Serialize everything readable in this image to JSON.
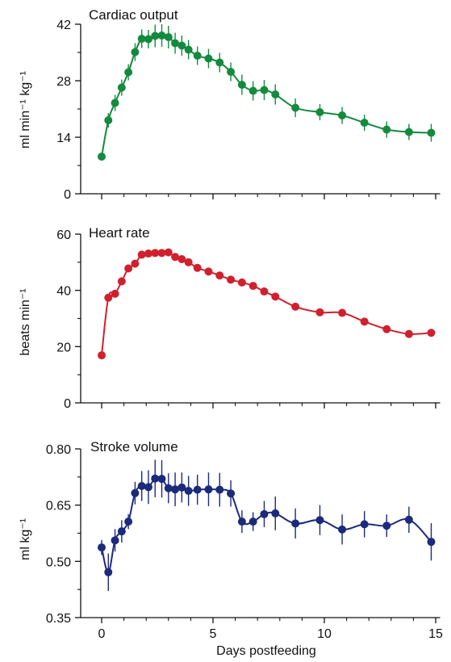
{
  "chart_data": [
    {
      "type": "line",
      "title": "Cardiac output",
      "ylabel": "ml min⁻¹ kg⁻¹",
      "xlabel": "",
      "ylim": [
        0,
        42
      ],
      "yticks": [
        "0",
        "14",
        "28",
        "42"
      ],
      "color": "#138a3e",
      "series": [
        {
          "x": [
            0,
            0.3,
            0.6,
            0.9,
            1.2,
            1.5,
            1.8,
            2.1,
            2.4,
            2.7,
            3.0,
            3.3,
            3.6,
            3.9,
            4.3,
            4.8,
            5.3,
            5.8,
            6.3,
            6.8,
            7.3,
            7.8,
            8.7,
            9.8,
            10.8,
            11.8,
            12.8,
            13.8,
            14.8
          ],
          "y": [
            9.2,
            18.2,
            22.5,
            26.3,
            30.1,
            35.1,
            38.4,
            38.3,
            39.1,
            39.2,
            38.8,
            37.3,
            36.7,
            35.7,
            34.2,
            33.5,
            32.5,
            30.2,
            27.0,
            25.5,
            25.7,
            24.6,
            21.3,
            20.2,
            19.4,
            17.6,
            15.9,
            15.3,
            15.1
          ],
          "err": [
            0.5,
            1.8,
            2.0,
            2.0,
            2.0,
            2.2,
            2.3,
            2.3,
            2.8,
            2.8,
            2.8,
            2.6,
            2.5,
            2.4,
            2.3,
            2.4,
            2.4,
            2.3,
            2.5,
            2.4,
            2.5,
            2.5,
            2.3,
            2.0,
            2.1,
            2.0,
            2.0,
            2.0,
            2.2
          ]
        }
      ]
    },
    {
      "type": "line",
      "title": "Heart rate",
      "ylabel": "beats min⁻¹",
      "xlabel": "",
      "ylim": [
        0,
        60
      ],
      "yticks": [
        "0",
        "20",
        "40",
        "60"
      ],
      "color": "#d0202e",
      "series": [
        {
          "x": [
            0,
            0.3,
            0.6,
            0.9,
            1.2,
            1.5,
            1.8,
            2.1,
            2.4,
            2.7,
            3.0,
            3.3,
            3.6,
            3.9,
            4.3,
            4.8,
            5.3,
            5.8,
            6.3,
            6.8,
            7.3,
            7.8,
            8.7,
            9.8,
            10.8,
            11.8,
            12.8,
            13.8,
            14.8
          ],
          "y": [
            16.9,
            37.4,
            38.8,
            43.2,
            47.8,
            49.5,
            52.7,
            53.1,
            53.3,
            53.3,
            53.5,
            51.9,
            51.1,
            50.0,
            48.0,
            46.7,
            45.3,
            43.8,
            42.8,
            41.6,
            39.6,
            37.8,
            34.2,
            32.2,
            32.0,
            28.9,
            26.2,
            24.5,
            24.9
          ]
        }
      ]
    },
    {
      "type": "line",
      "title": "Stroke volume",
      "ylabel": "ml kg⁻¹",
      "xlabel": "Days postfeeding",
      "ylim": [
        0.35,
        0.8
      ],
      "yticks": [
        "0.35",
        "0.50",
        "0.65",
        "0.80"
      ],
      "xticks": [
        "0",
        "5",
        "10",
        "15"
      ],
      "xlim": [
        -0.5,
        15.2
      ],
      "color": "#1c2a7c",
      "series": [
        {
          "x": [
            0,
            0.3,
            0.6,
            0.9,
            1.2,
            1.5,
            1.8,
            2.1,
            2.4,
            2.7,
            3.0,
            3.3,
            3.6,
            3.9,
            4.3,
            4.8,
            5.3,
            5.8,
            6.3,
            6.8,
            7.3,
            7.8,
            8.7,
            9.8,
            10.8,
            11.8,
            12.8,
            13.8,
            14.8
          ],
          "y": [
            0.537,
            0.471,
            0.556,
            0.58,
            0.606,
            0.682,
            0.701,
            0.698,
            0.721,
            0.72,
            0.695,
            0.692,
            0.697,
            0.688,
            0.691,
            0.692,
            0.691,
            0.681,
            0.606,
            0.606,
            0.626,
            0.628,
            0.601,
            0.61,
            0.585,
            0.599,
            0.595,
            0.611,
            0.552
          ],
          "err": [
            0.02,
            0.05,
            0.03,
            0.03,
            0.02,
            0.03,
            0.04,
            0.045,
            0.05,
            0.05,
            0.04,
            0.045,
            0.04,
            0.04,
            0.04,
            0.045,
            0.045,
            0.035,
            0.03,
            0.025,
            0.035,
            0.045,
            0.04,
            0.04,
            0.04,
            0.035,
            0.03,
            0.035,
            0.05
          ]
        }
      ]
    }
  ]
}
